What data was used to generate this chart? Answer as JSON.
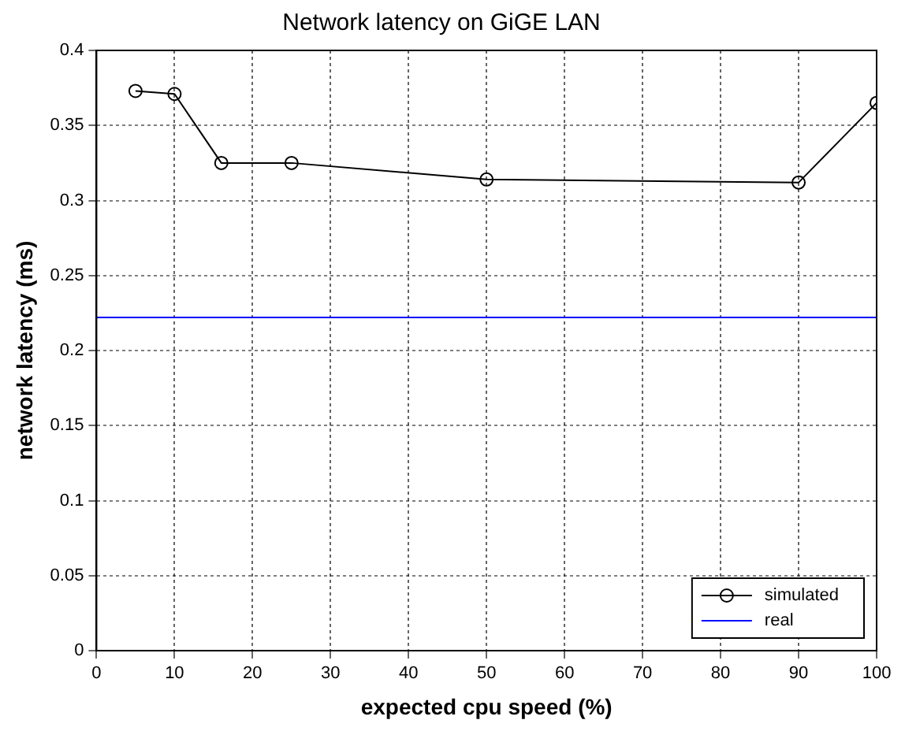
{
  "chart_data": {
    "type": "line",
    "title": "Network latency on GiGE LAN",
    "xlabel": "expected cpu speed (%)",
    "ylabel": "network latency (ms)",
    "series": [
      {
        "name": "simulated",
        "color": "#000000",
        "x": [
          5,
          10,
          16,
          25,
          50,
          90,
          100
        ],
        "values": [
          0.373,
          0.371,
          0.325,
          0.325,
          0.314,
          0.312,
          0.365
        ],
        "marker": "circle"
      },
      {
        "name": "real",
        "color": "#0000ff",
        "x": [
          0,
          100
        ],
        "values": [
          0.222,
          0.222
        ],
        "marker": "none"
      }
    ],
    "xlim": [
      0,
      100
    ],
    "xticks": [
      0,
      10,
      20,
      30,
      40,
      50,
      60,
      70,
      80,
      90,
      100
    ],
    "ylim": [
      0,
      0.4
    ],
    "yticks": [
      0,
      0.05,
      0.1,
      0.15,
      0.2,
      0.25,
      0.3,
      0.35,
      0.4
    ],
    "grid": true,
    "line_style": "solid",
    "legend": "bottom right"
  }
}
